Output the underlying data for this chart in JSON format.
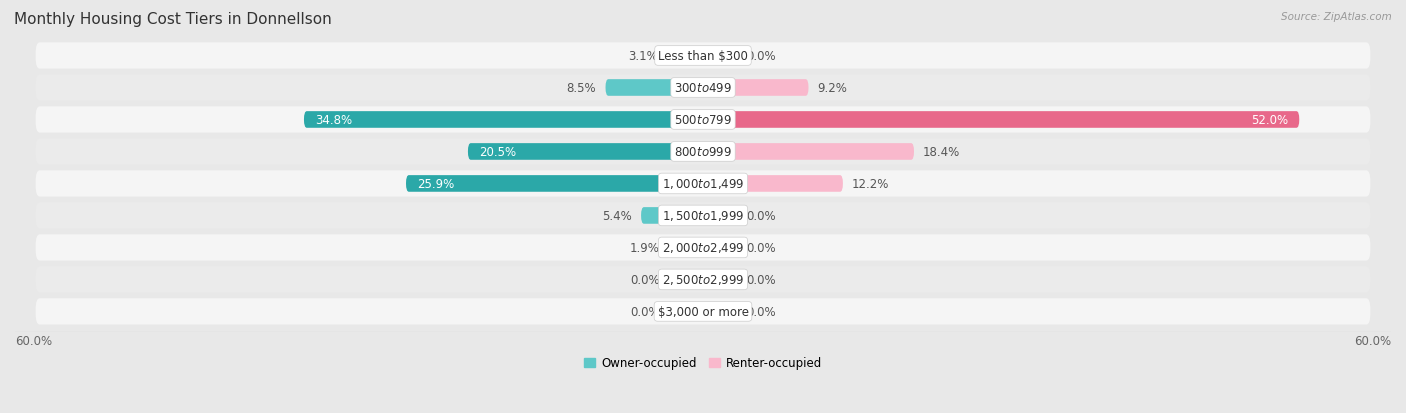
{
  "title": "Monthly Housing Cost Tiers in Donnellson",
  "source": "Source: ZipAtlas.com",
  "categories": [
    "Less than $300",
    "$300 to $499",
    "$500 to $799",
    "$800 to $999",
    "$1,000 to $1,499",
    "$1,500 to $1,999",
    "$2,000 to $2,499",
    "$2,500 to $2,999",
    "$3,000 or more"
  ],
  "owner_values": [
    3.1,
    8.5,
    34.8,
    20.5,
    25.9,
    5.4,
    1.9,
    0.0,
    0.0
  ],
  "renter_values": [
    0.0,
    9.2,
    52.0,
    18.4,
    12.2,
    0.0,
    0.0,
    0.0,
    0.0
  ],
  "owner_color_light": "#5ec8c8",
  "owner_color_dark": "#2ba8a8",
  "renter_color_light": "#f9b8cc",
  "renter_color_dark": "#e8688a",
  "row_colors": [
    "#f5f5f5",
    "#ebebeb"
  ],
  "bg_color": "#e8e8e8",
  "xlim": 60.0,
  "legend_owner": "Owner-occupied",
  "legend_renter": "Renter-occupied",
  "title_fontsize": 11,
  "label_fontsize": 8.5,
  "source_fontsize": 7.5,
  "zero_stub": 3.0
}
